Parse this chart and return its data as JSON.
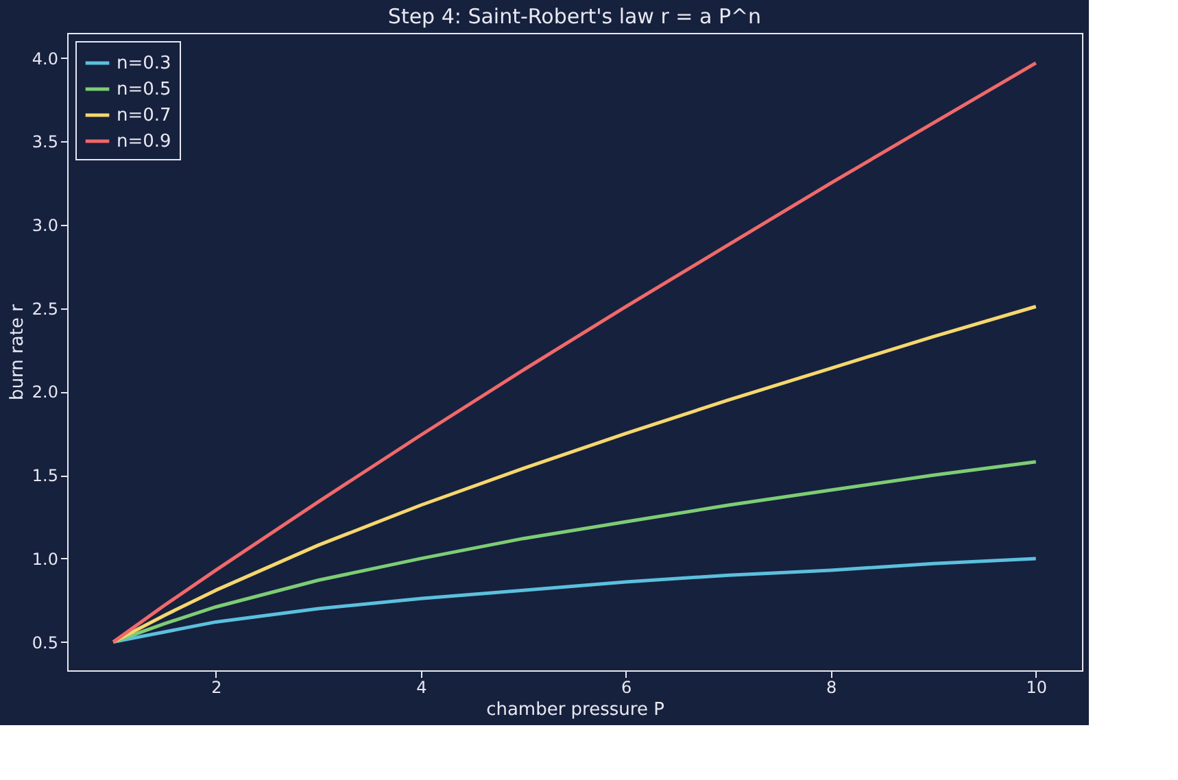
{
  "chart_data": {
    "type": "line",
    "title": "Step 4: Saint-Robert's law  r = a P^n",
    "xlabel": "chamber pressure P",
    "ylabel": "burn rate r",
    "x": [
      1,
      1.5,
      2,
      3,
      4,
      5,
      6,
      7,
      8,
      9,
      10
    ],
    "series": [
      {
        "name": "n=0.3",
        "color": "#5bc0de",
        "values": [
          0.5,
          0.56,
          0.62,
          0.7,
          0.76,
          0.81,
          0.86,
          0.9,
          0.93,
          0.97,
          1.0
        ]
      },
      {
        "name": "n=0.5",
        "color": "#7dcd74",
        "values": [
          0.5,
          0.61,
          0.71,
          0.87,
          1.0,
          1.12,
          1.22,
          1.32,
          1.41,
          1.5,
          1.58
        ]
      },
      {
        "name": "n=0.7",
        "color": "#f5d76e",
        "values": [
          0.5,
          0.66,
          0.81,
          1.08,
          1.32,
          1.54,
          1.75,
          1.95,
          2.14,
          2.33,
          2.51
        ]
      },
      {
        "name": "n=0.9",
        "color": "#f0696a",
        "values": [
          0.5,
          0.72,
          0.93,
          1.34,
          1.74,
          2.13,
          2.51,
          2.88,
          3.25,
          3.61,
          3.97
        ]
      }
    ],
    "xlim": [
      0.55,
      10.45
    ],
    "ylim": [
      0.33,
      4.15
    ],
    "xticks": [
      2,
      4,
      6,
      8,
      10
    ],
    "yticks": [
      0.5,
      {
        "value": 1,
        "label": "1.0"
      },
      1.5,
      {
        "value": 2,
        "label": "2.0"
      },
      2.5,
      {
        "value": 3,
        "label": "3.0"
      },
      3.5,
      {
        "value": 4,
        "label": "4.0"
      }
    ],
    "legend": "top left",
    "grid": false,
    "line_style": "solid",
    "marker": "none"
  }
}
